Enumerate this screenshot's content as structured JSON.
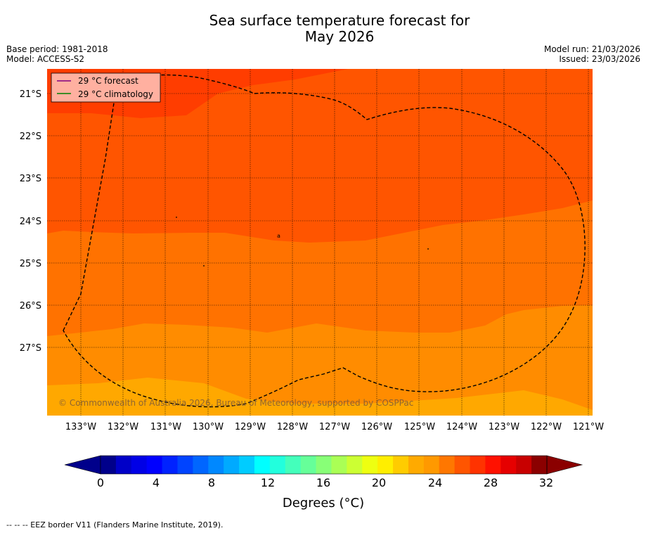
{
  "title": {
    "line1": "Sea surface temperature forecast for",
    "line2": "May 2026"
  },
  "meta": {
    "base_period": "Base period: 1981-2018",
    "model": "Model: ACCESS-S2",
    "model_run": "Model run: 21/03/2026",
    "issued": "Issued: 23/03/2026"
  },
  "map": {
    "latitude_labels": [
      "21°S",
      "22°S",
      "23°S",
      "24°S",
      "25°S",
      "26°S",
      "27°S"
    ],
    "longitude_labels": [
      "133°W",
      "132°W",
      "131°W",
      "130°W",
      "129°W",
      "128°W",
      "127°W",
      "126°W",
      "125°W",
      "124°W",
      "123°W",
      "122°W",
      "121°W"
    ],
    "copyright": "© Commonwealth of Australia 2026, Bureau of Meteorology, supported by COSPPac",
    "island_label": "a",
    "zone_colors": {
      "c29_30": "#ff3d00",
      "c28_29": "#ff5500",
      "c27_28": "#ff7200",
      "c26_27": "#ff8c00",
      "c25_26": "#ffa800"
    }
  },
  "legend": {
    "forecast_label": "29 °C  forecast",
    "climatology_label": "29 °C  climatology",
    "forecast_color": "#800080",
    "climatology_color": "#008000"
  },
  "colorbar": {
    "tick_labels": [
      "0",
      "4",
      "8",
      "12",
      "16",
      "20",
      "24",
      "28",
      "32"
    ],
    "title": "Degrees (°C)",
    "colors": [
      "#00008b",
      "#0000c8",
      "#0000e6",
      "#0000ff",
      "#0022ff",
      "#0044ff",
      "#0066ff",
      "#0088ff",
      "#00aaff",
      "#00ccff",
      "#00ffff",
      "#22ffdd",
      "#44ffbb",
      "#66ff99",
      "#88ff77",
      "#aaff55",
      "#ccff33",
      "#eeff11",
      "#ffee00",
      "#ffcc00",
      "#ffaa00",
      "#ff9900",
      "#ff7700",
      "#ff5500",
      "#ff3300",
      "#ff1100",
      "#e60000",
      "#c80000",
      "#8b0000"
    ],
    "under_color": "#00008b",
    "over_color": "#8b0000"
  },
  "footer": {
    "note": "--  --  -- EEZ border V11 (Flanders Marine Institute, 2019)."
  }
}
